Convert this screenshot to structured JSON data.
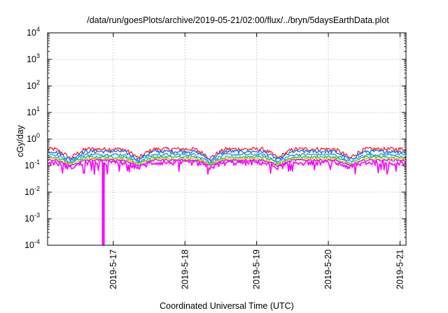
{
  "chart_data": {
    "type": "line",
    "title": "/data/run/goesPlots/archive/2019-05-21/02:00/flux/../bryn/5daysEarthData.plot",
    "xlabel": "Coordinated Universal Time (UTC)",
    "ylabel": "cGy/day",
    "yscale": "log",
    "ylim": [
      0.0001,
      10000
    ],
    "xlim": [
      "2019-05-16 02:00",
      "2019-05-21 02:00"
    ],
    "y_ticks": [
      {
        "value": 0.0001,
        "base": "10",
        "exp": "-4"
      },
      {
        "value": 0.001,
        "base": "10",
        "exp": "-3"
      },
      {
        "value": 0.01,
        "base": "10",
        "exp": "-2"
      },
      {
        "value": 0.1,
        "base": "10",
        "exp": "-1"
      },
      {
        "value": 1,
        "base": "10",
        "exp": "0"
      },
      {
        "value": 10,
        "base": "10",
        "exp": "1"
      },
      {
        "value": 100,
        "base": "10",
        "exp": "2"
      },
      {
        "value": 1000,
        "base": "10",
        "exp": "3"
      },
      {
        "value": 10000,
        "base": "10",
        "exp": "4"
      }
    ],
    "x_ticks": [
      "2019-5-17",
      "2019-5-18",
      "2019-5-19",
      "2019-5-20",
      "2019-5-21"
    ],
    "x_tick_days": [
      16,
      17,
      18,
      19,
      20
    ],
    "grid": true,
    "legend": "none",
    "series": [
      {
        "color": "#ff2020",
        "level": 0.42,
        "dip": 0.16,
        "noise": 0.18
      },
      {
        "color": "#2060ff",
        "level": 0.34,
        "dip": 0.14,
        "noise": 0.15
      },
      {
        "color": "#10a0e0",
        "level": 0.26,
        "dip": 0.12,
        "noise": 0.12
      },
      {
        "color": "#20c040",
        "level": 0.21,
        "dip": 0.11,
        "noise": 0.1
      },
      {
        "color": "#ffb000",
        "level": 0.18,
        "dip": 0.1,
        "noise": 0.09
      },
      {
        "color": "#a020f0",
        "level": 0.16,
        "dip": 0.09,
        "noise": 0.09
      },
      {
        "color": "#ff00ff",
        "level": 0.13,
        "dip": 0.08,
        "noise": 0.22,
        "spike_day": 16.86,
        "spike_min": 0.0001
      }
    ],
    "minima_days": [
      16.4,
      17.35,
      18.35,
      19.3,
      20.3
    ]
  }
}
